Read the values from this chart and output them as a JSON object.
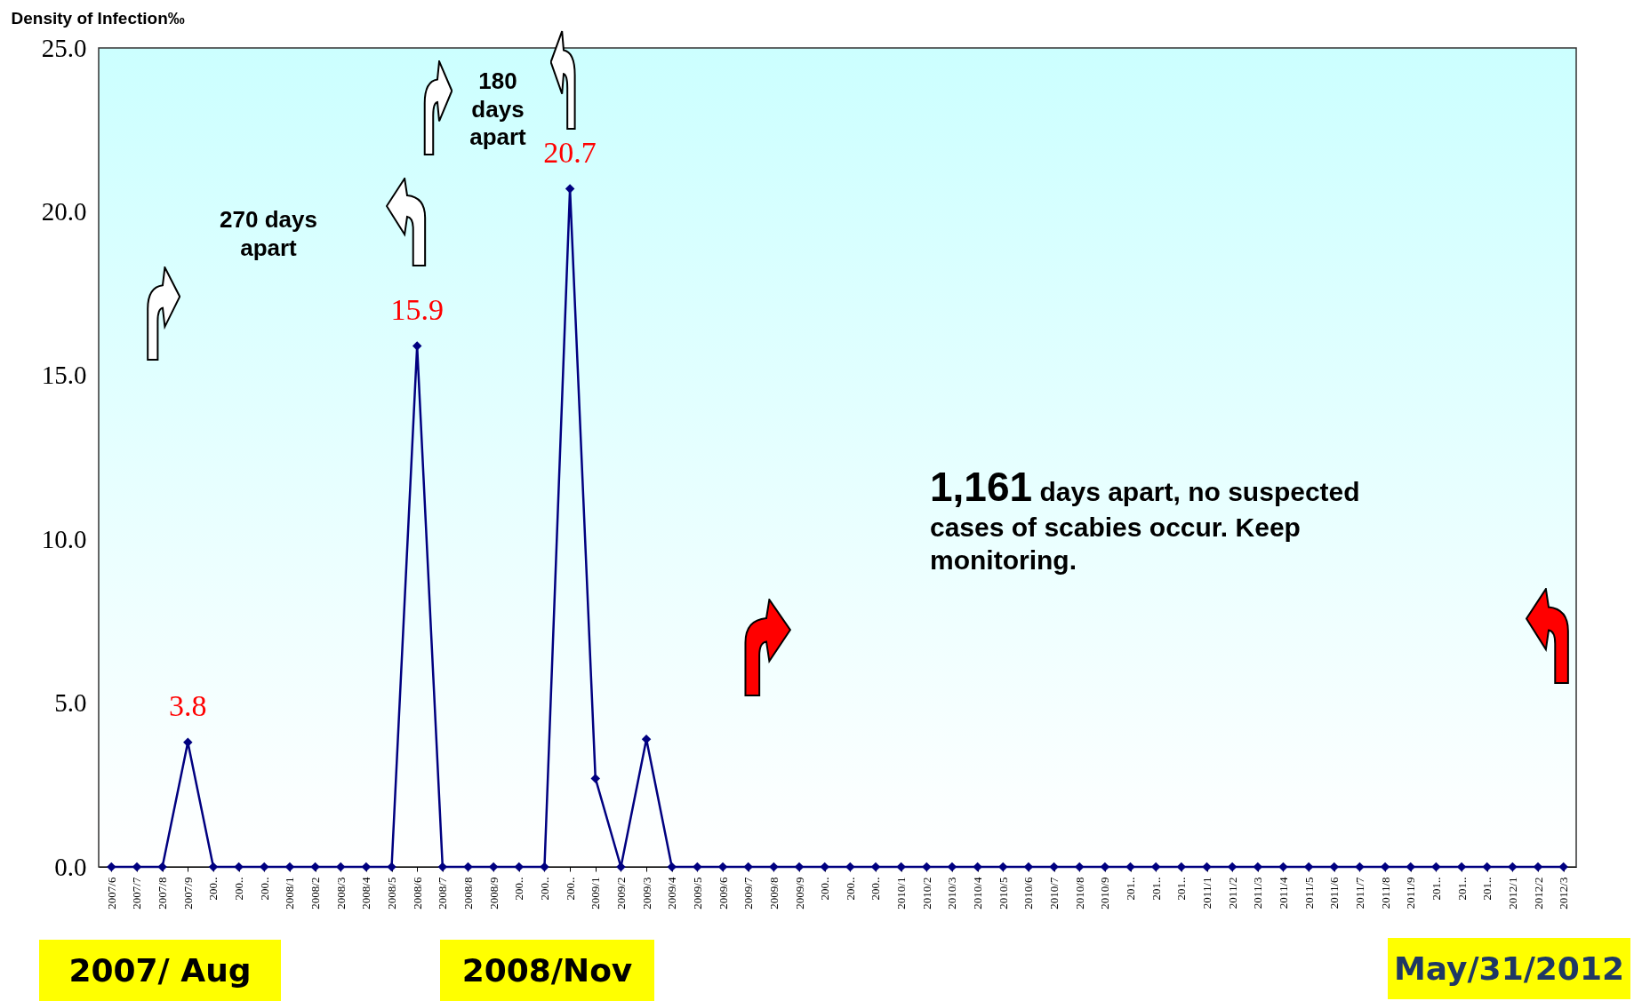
{
  "chart_data": {
    "type": "line",
    "ylabel": "Density of Infection‰",
    "categories": [
      "2007/6",
      "2007/7",
      "2007/8",
      "2007/9",
      "200..",
      "200..",
      "200..",
      "2008/1",
      "2008/2",
      "2008/3",
      "2008/4",
      "2008/5",
      "2008/6",
      "2008/7",
      "2008/8",
      "2008/9",
      "200..",
      "200..",
      "200..",
      "2009/1",
      "2009/2",
      "2009/3",
      "2009/4",
      "2009/5",
      "2009/6",
      "2009/7",
      "2009/8",
      "2009/9",
      "200..",
      "200..",
      "200..",
      "2010/1",
      "2010/2",
      "2010/3",
      "2010/4",
      "2010/5",
      "2010/6",
      "2010/7",
      "2010/8",
      "2010/9",
      "201..",
      "201..",
      "201..",
      "2011/1",
      "2011/2",
      "2011/3",
      "2011/4",
      "2011/5",
      "2011/6",
      "2011/7",
      "2011/8",
      "2011/9",
      "201..",
      "201..",
      "201..",
      "2012/1",
      "2012/2",
      "2012/3"
    ],
    "values": [
      0,
      0,
      0,
      3.8,
      0,
      0,
      0,
      0,
      0,
      0,
      0,
      0,
      15.9,
      0,
      0,
      0,
      0,
      0,
      20.7,
      2.7,
      0,
      3.9,
      0,
      0,
      0,
      0,
      0,
      0,
      0,
      0,
      0,
      0,
      0,
      0,
      0,
      0,
      0,
      0,
      0,
      0,
      0,
      0,
      0,
      0,
      0,
      0,
      0,
      0,
      0,
      0,
      0,
      0,
      0,
      0,
      0,
      0,
      0,
      0
    ],
    "value_labels": [
      null,
      null,
      null,
      "3.8",
      null,
      null,
      null,
      null,
      null,
      null,
      null,
      null,
      "15.9",
      null,
      null,
      null,
      null,
      null,
      "20.7",
      null,
      null,
      null,
      null,
      null,
      null,
      null,
      null,
      null,
      null,
      null,
      null,
      null,
      null,
      null,
      null,
      null,
      null,
      null,
      null,
      null,
      null,
      null,
      null,
      null,
      null,
      null,
      null,
      null,
      null,
      null,
      null,
      null,
      null,
      null,
      null,
      null,
      null,
      null
    ],
    "color": "#000080",
    "marker": "diamond",
    "ylim": [
      0,
      25
    ],
    "yticks": [
      {
        "value": 0,
        "label": "0.0"
      },
      {
        "value": 5,
        "label": "5.0"
      },
      {
        "value": 10,
        "label": "10.0"
      },
      {
        "value": 15,
        "label": "15.0"
      },
      {
        "value": 20,
        "label": "20.0"
      },
      {
        "value": 25,
        "label": "25.0"
      }
    ],
    "annotations": [
      "270 days apart",
      "180 days apart",
      "1,161 days apart, no suspected cases of scabies occur. Keep monitoring.",
      "2007/ Aug",
      "2008/Nov",
      "May/31/2012"
    ]
  }
}
